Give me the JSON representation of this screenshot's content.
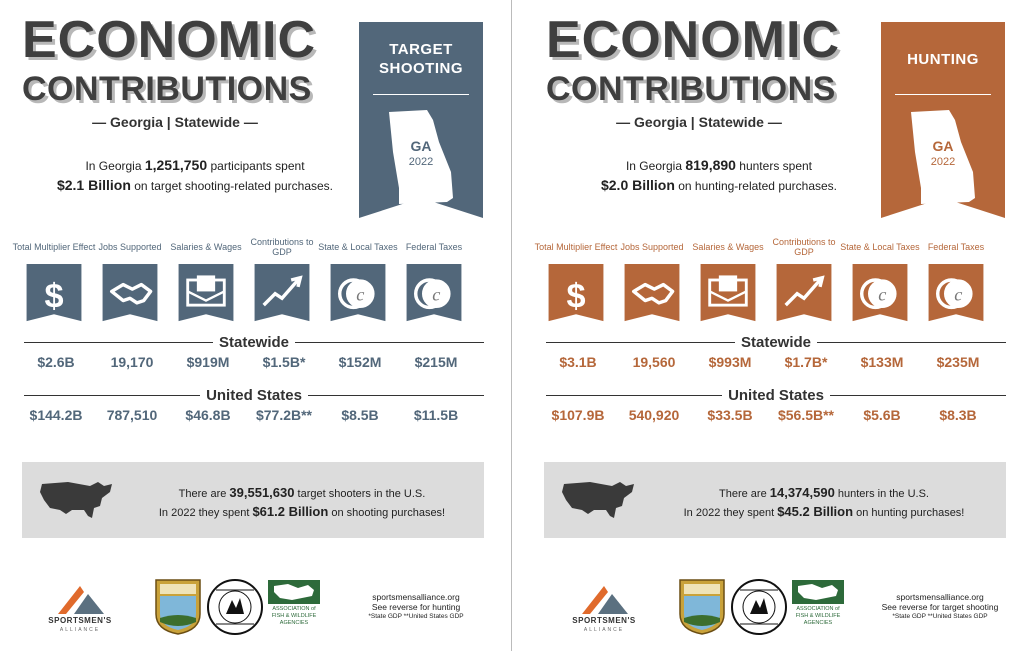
{
  "colors": {
    "shooting": "#52677a",
    "hunting": "#b5673a",
    "title": "#3f3f3f",
    "box": "#dcdcdc"
  },
  "panels": [
    {
      "id": "shooting",
      "title_line1": "ECONOMIC",
      "title_line2": "CONTRIBUTIONS",
      "region": "— Georgia | Statewide —",
      "banner_line1": "TARGET",
      "banner_line2": "SHOOTING",
      "banner_state": "GA",
      "banner_year": "2022",
      "summary_pre": "In Georgia ",
      "summary_count": "1,251,750",
      "summary_mid": " participants spent",
      "summary_amount": "$2.1 Billion",
      "summary_post": " on target shooting-related purchases.",
      "icons": [
        {
          "label": "Total Multiplier Effect",
          "icon": "dollar-icon"
        },
        {
          "label": "Jobs Supported",
          "icon": "handshake-icon"
        },
        {
          "label": "Salaries & Wages",
          "icon": "envelope-icon"
        },
        {
          "label": "Contributions to GDP",
          "icon": "trend-up-icon"
        },
        {
          "label": "State & Local Taxes",
          "icon": "coins-icon"
        },
        {
          "label": "Federal Taxes",
          "icon": "coins-icon"
        }
      ],
      "statewide_label": "Statewide",
      "statewide": [
        "$2.6B",
        "19,170",
        "$919M",
        "$1.5B*",
        "$152M",
        "$215M"
      ],
      "us_label": "United States",
      "us": [
        "$144.2B",
        "787,510",
        "$46.8B",
        "$77.2B**",
        "$8.5B",
        "$11.5B"
      ],
      "box_pre": "There are ",
      "box_count": "39,551,630",
      "box_mid": " target shooters in the U.S.",
      "box_pre2": "In 2022 they spent ",
      "box_amount": "$61.2 Billion",
      "box_post": " on shooting purchases!",
      "logo_word": "SPORTSMEN'S",
      "logo_sub": "ALLIANCE",
      "afwa_text": "ASSOCIATION of FISH & WILDLIFE AGENCIES",
      "footer_site": "sportsmensalliance.org",
      "footer_reverse": "See reverse for hunting",
      "footer_note": "*State GDP **United States GDP"
    },
    {
      "id": "hunting",
      "title_line1": "ECONOMIC",
      "title_line2": "CONTRIBUTIONS",
      "region": "— Georgia | Statewide —",
      "banner_line1": "HUNTING",
      "banner_line2": "",
      "banner_state": "GA",
      "banner_year": "2022",
      "summary_pre": "In Georgia ",
      "summary_count": "819,890",
      "summary_mid": " hunters spent",
      "summary_amount": "$2.0 Billion",
      "summary_post": " on hunting-related purchases.",
      "icons": [
        {
          "label": "Total Multiplier Effect",
          "icon": "dollar-icon"
        },
        {
          "label": "Jobs Supported",
          "icon": "handshake-icon"
        },
        {
          "label": "Salaries & Wages",
          "icon": "envelope-icon"
        },
        {
          "label": "Contributions to GDP",
          "icon": "trend-up-icon"
        },
        {
          "label": "State & Local Taxes",
          "icon": "coins-icon"
        },
        {
          "label": "Federal Taxes",
          "icon": "coins-icon"
        }
      ],
      "statewide_label": "Statewide",
      "statewide": [
        "$3.1B",
        "19,560",
        "$993M",
        "$1.7B*",
        "$133M",
        "$235M"
      ],
      "us_label": "United States",
      "us": [
        "$107.9B",
        "540,920",
        "$33.5B",
        "$56.5B**",
        "$5.6B",
        "$8.3B"
      ],
      "box_pre": "There are ",
      "box_count": "14,374,590",
      "box_mid": " hunters in the U.S.",
      "box_pre2": "In 2022 they spent ",
      "box_amount": "$45.2 Billion",
      "box_post": " on hunting purchases!",
      "logo_word": "SPORTSMEN'S",
      "logo_sub": "ALLIANCE",
      "afwa_text": "ASSOCIATION of FISH & WILDLIFE AGENCIES",
      "footer_site": "sportsmensalliance.org",
      "footer_reverse": "See reverse for target shooting",
      "footer_note": "*State GDP **United States GDP"
    }
  ]
}
